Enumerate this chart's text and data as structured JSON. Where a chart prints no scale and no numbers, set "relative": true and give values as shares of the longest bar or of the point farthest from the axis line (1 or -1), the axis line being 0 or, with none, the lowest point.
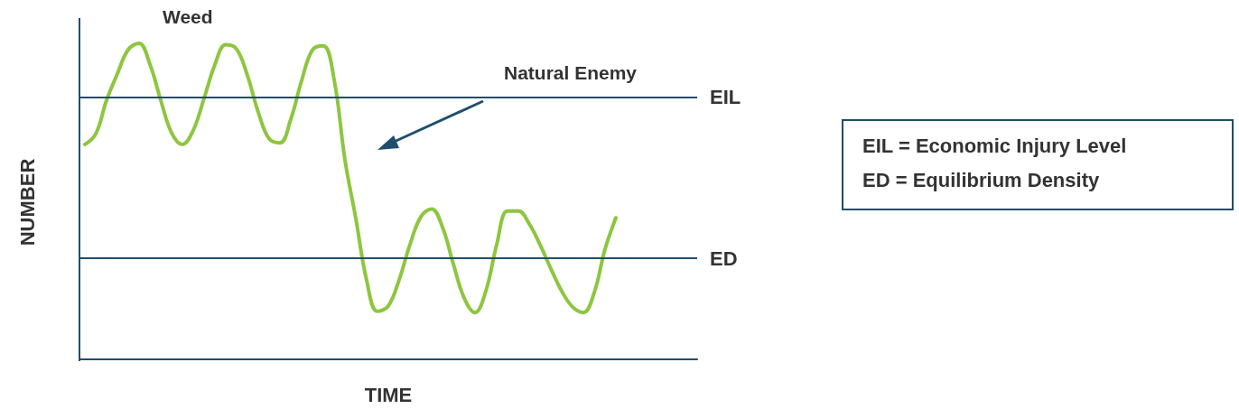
{
  "chart_data": {
    "type": "line",
    "relative": true,
    "xlabel": "TIME",
    "ylabel": "NUMBER",
    "categories": [
      null,
      null,
      null,
      null,
      null,
      null,
      null,
      null,
      null,
      null,
      null,
      null,
      null,
      null,
      null,
      null,
      null,
      null,
      null,
      null,
      null,
      null,
      null,
      null,
      null,
      null,
      null,
      null,
      null,
      null,
      null,
      null,
      null,
      null,
      null,
      null,
      null,
      null,
      null,
      null,
      null,
      null,
      null,
      null,
      null,
      null,
      null,
      null,
      null,
      null,
      null,
      null,
      null,
      null,
      null,
      null,
      null
    ],
    "series": [
      {
        "name": "Weed",
        "color": "#8dc63f",
        "values": [
          0.68,
          0.713,
          0.82,
          0.904,
          0.98,
          1,
          0.934,
          0.82,
          0.717,
          0.68,
          0.725,
          0.826,
          0.933,
          0.996,
          0.982,
          0.898,
          0.782,
          0.698,
          0.685,
          0.76,
          0.882,
          0.979,
          0.992,
          0.885,
          0.631,
          0.446,
          0.25,
          0.152,
          0.169,
          0.252,
          0.363,
          0.451,
          0.476,
          0.418,
          0.302,
          0.194,
          0.148,
          0.216,
          0.363,
          0.469,
          0.469,
          0.429,
          0.363,
          0.287,
          0.216,
          0.166,
          0.148,
          0.211,
          0.349,
          0.448,
          null,
          null,
          null,
          null,
          null,
          null,
          null
        ]
      }
    ],
    "ref_lines": [
      {
        "axis": "y",
        "value": 0.83,
        "label": "EIL",
        "color": "#1f4e6e"
      },
      {
        "axis": "y",
        "value": 0.318,
        "label": "ED",
        "color": "#1f4e6e"
      }
    ],
    "annotations": [
      "Natural Enemy",
      "EIL = Economic Injury Level",
      "ED = Equilibrium Density"
    ],
    "legend": false,
    "grid": false,
    "marker": "none",
    "line_style": "solid"
  }
}
